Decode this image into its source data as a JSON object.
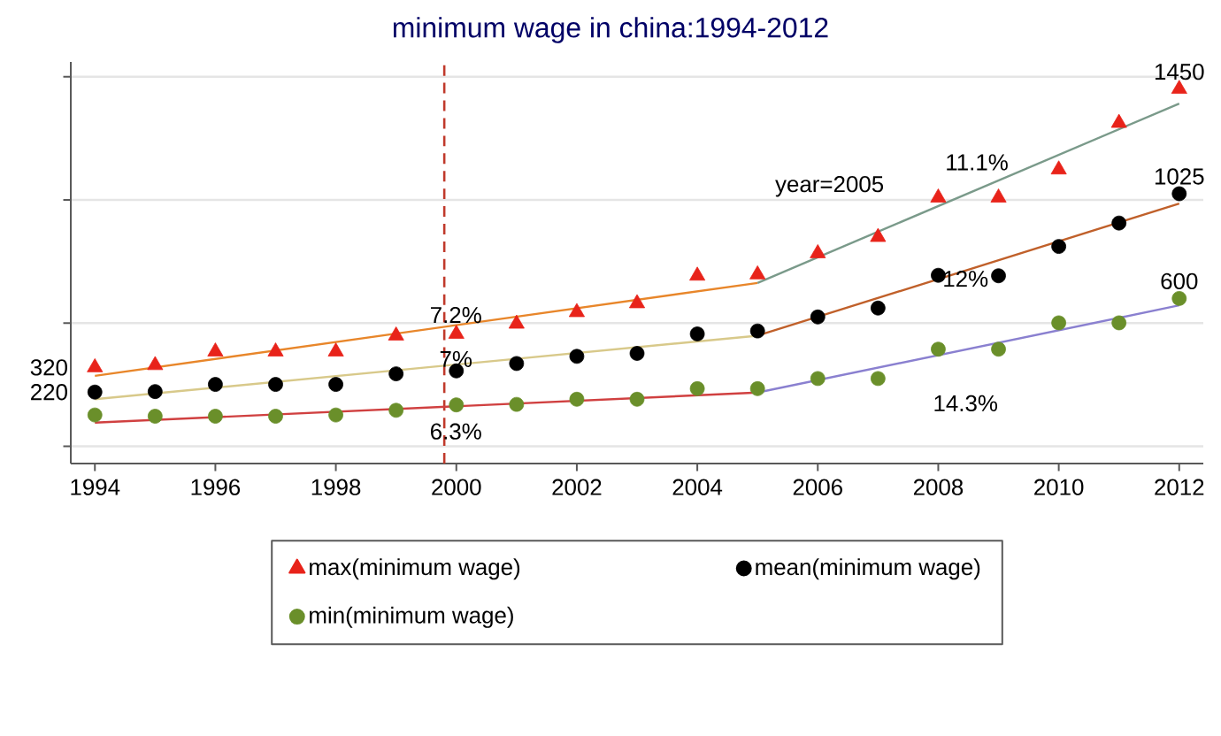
{
  "chart_data": {
    "type": "scatter",
    "title": "minimum wage in china:1994-2012",
    "x": [
      1994,
      1995,
      1996,
      1997,
      1998,
      1999,
      2000,
      2001,
      2002,
      2003,
      2004,
      2005,
      2006,
      2007,
      2008,
      2009,
      2010,
      2011,
      2012
    ],
    "series": [
      {
        "name": "max(minimum wage)",
        "color": "#e8231a",
        "marker": "triangle",
        "values": [
          320,
          329,
          384,
          384,
          384,
          449,
          456,
          497,
          544,
          580,
          692,
          697,
          783,
          849,
          1009,
          1009,
          1123,
          1312,
          1450
        ],
        "value_labels": [
          "320",
          null,
          null,
          null,
          null,
          null,
          null,
          null,
          null,
          null,
          null,
          null,
          null,
          null,
          null,
          null,
          null,
          null,
          "1450"
        ]
      },
      {
        "name": "mean(minimum wage)",
        "color": "#000000",
        "marker": "circle",
        "values": [
          220,
          222,
          251,
          251,
          251,
          294,
          306,
          336,
          365,
          377,
          456,
          468,
          525,
          561,
          694,
          692,
          811,
          906,
          1025
        ],
        "value_labels": [
          "220",
          null,
          null,
          null,
          null,
          null,
          null,
          null,
          null,
          null,
          null,
          null,
          null,
          null,
          null,
          null,
          null,
          null,
          "1025"
        ]
      },
      {
        "name": "min(minimum wage)",
        "color": "#6a8f2a",
        "marker": "circle",
        "values": [
          127,
          122,
          122,
          122,
          127,
          146,
          168,
          170,
          191,
          191,
          234,
          234,
          275,
          275,
          394,
          394,
          501,
          501,
          600
        ],
        "value_labels": [
          null,
          null,
          null,
          null,
          null,
          null,
          null,
          null,
          null,
          null,
          null,
          null,
          null,
          null,
          null,
          null,
          null,
          null,
          "600"
        ]
      },
      {
        "type": "line",
        "color": "#e8862a",
        "x": [
          1994,
          2005
        ],
        "values": [
          286,
          663
        ]
      },
      {
        "type": "line",
        "color": "#7a9a8a",
        "x": [
          2005,
          2012
        ],
        "values": [
          663,
          1391
        ]
      },
      {
        "type": "line",
        "color": "#d8c98a",
        "x": [
          1994,
          2005
        ],
        "values": [
          191,
          449
        ]
      },
      {
        "type": "line",
        "color": "#c0602a",
        "x": [
          2005,
          2012
        ],
        "values": [
          449,
          985
        ]
      },
      {
        "type": "line",
        "color": "#d04040",
        "x": [
          1994,
          2005
        ],
        "values": [
          96,
          218
        ]
      },
      {
        "type": "line",
        "color": "#8a80d0",
        "x": [
          2005,
          2012
        ],
        "values": [
          218,
          572
        ]
      }
    ],
    "annotations": [
      "7.2%",
      "7%",
      "6.3%",
      "year=2005",
      "11.1%",
      "12%",
      "14.3%"
    ],
    "ref_lines": [
      {
        "axis": "x",
        "value": 1999.8,
        "color": "#c0392b",
        "line_style": "dashed"
      }
    ],
    "xlim": [
      1993.6,
      2012.4
    ],
    "ylim": [
      -70,
      1560
    ],
    "xticks": [
      1994,
      1996,
      1998,
      2000,
      2002,
      2004,
      2006,
      2008,
      2010,
      2012
    ],
    "yticks": [
      {
        "value": 0,
        "label": null
      },
      {
        "value": 500,
        "label": null
      },
      {
        "value": 1000,
        "label": null
      },
      {
        "value": 1500,
        "label": null
      }
    ],
    "tick_labels": "x",
    "grid": "y",
    "legend": "bottom"
  }
}
